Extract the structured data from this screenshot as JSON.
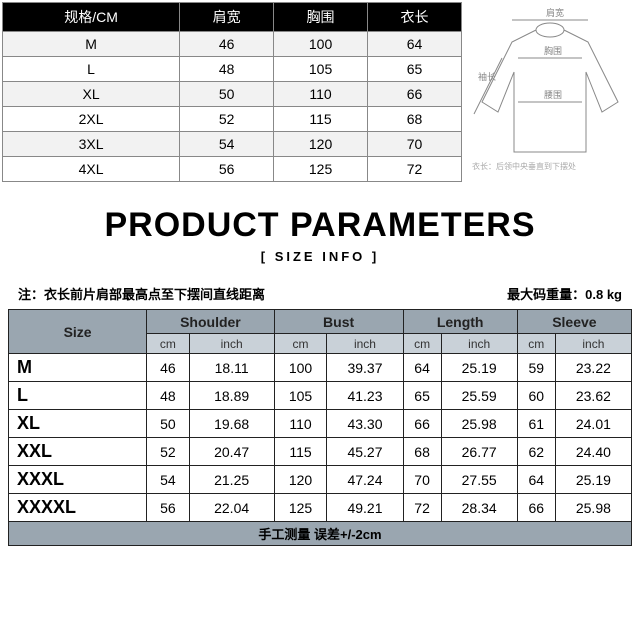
{
  "top_table": {
    "headers": [
      "规格/CM",
      "肩宽",
      "胸围",
      "衣长"
    ],
    "rows": [
      [
        "M",
        "46",
        "100",
        "64"
      ],
      [
        "L",
        "48",
        "105",
        "65"
      ],
      [
        "XL",
        "50",
        "110",
        "66"
      ],
      [
        "2XL",
        "52",
        "115",
        "68"
      ],
      [
        "3XL",
        "54",
        "120",
        "70"
      ],
      [
        "4XL",
        "56",
        "125",
        "72"
      ]
    ],
    "header_bg": "#000000",
    "header_fg": "#ffffff",
    "alt_row_bg": "#f2f2f2",
    "border_color": "#888888"
  },
  "diagram": {
    "labels": {
      "shoulder": "肩宽",
      "bust": "胸围",
      "length": "袖长",
      "hem": "腰围"
    },
    "caption": "衣长：后领中央垂直到下摆处",
    "line_color": "#888888"
  },
  "title": {
    "main": "PRODUCT PARAMETERS",
    "sub": "[  SIZE  INFO  ]"
  },
  "note": {
    "left_label": "注：",
    "left_text": "衣长前片肩部最高点至下摆间直线距离",
    "right_label": "最大码重量：",
    "right_value": "0.8 kg"
  },
  "detail_table": {
    "group_headers": [
      "Size",
      "Shoulder",
      "Bust",
      "Length",
      "Sleeve"
    ],
    "unit_headers": [
      "cm",
      "inch",
      "cm",
      "inch",
      "cm",
      "inch",
      "cm",
      "inch"
    ],
    "rows": [
      {
        "size": "M",
        "vals": [
          "46",
          "18.11",
          "100",
          "39.37",
          "64",
          "25.19",
          "59",
          "23.22"
        ]
      },
      {
        "size": "L",
        "vals": [
          "48",
          "18.89",
          "105",
          "41.23",
          "65",
          "25.59",
          "60",
          "23.62"
        ]
      },
      {
        "size": "XL",
        "vals": [
          "50",
          "19.68",
          "110",
          "43.30",
          "66",
          "25.98",
          "61",
          "24.01"
        ]
      },
      {
        "size": "XXL",
        "vals": [
          "52",
          "20.47",
          "115",
          "45.27",
          "68",
          "26.77",
          "62",
          "24.40"
        ]
      },
      {
        "size": "XXXL",
        "vals": [
          "54",
          "21.25",
          "120",
          "47.24",
          "70",
          "27.55",
          "64",
          "25.19"
        ]
      },
      {
        "size": "XXXXL",
        "vals": [
          "56",
          "22.04",
          "125",
          "49.21",
          "72",
          "28.34",
          "66",
          "25.98"
        ]
      }
    ],
    "footer": "手工测量 误差+/-2cm",
    "group_bg": "#9aa6b0",
    "unit_bg": "#c9d1d8",
    "border_color": "#222222"
  }
}
